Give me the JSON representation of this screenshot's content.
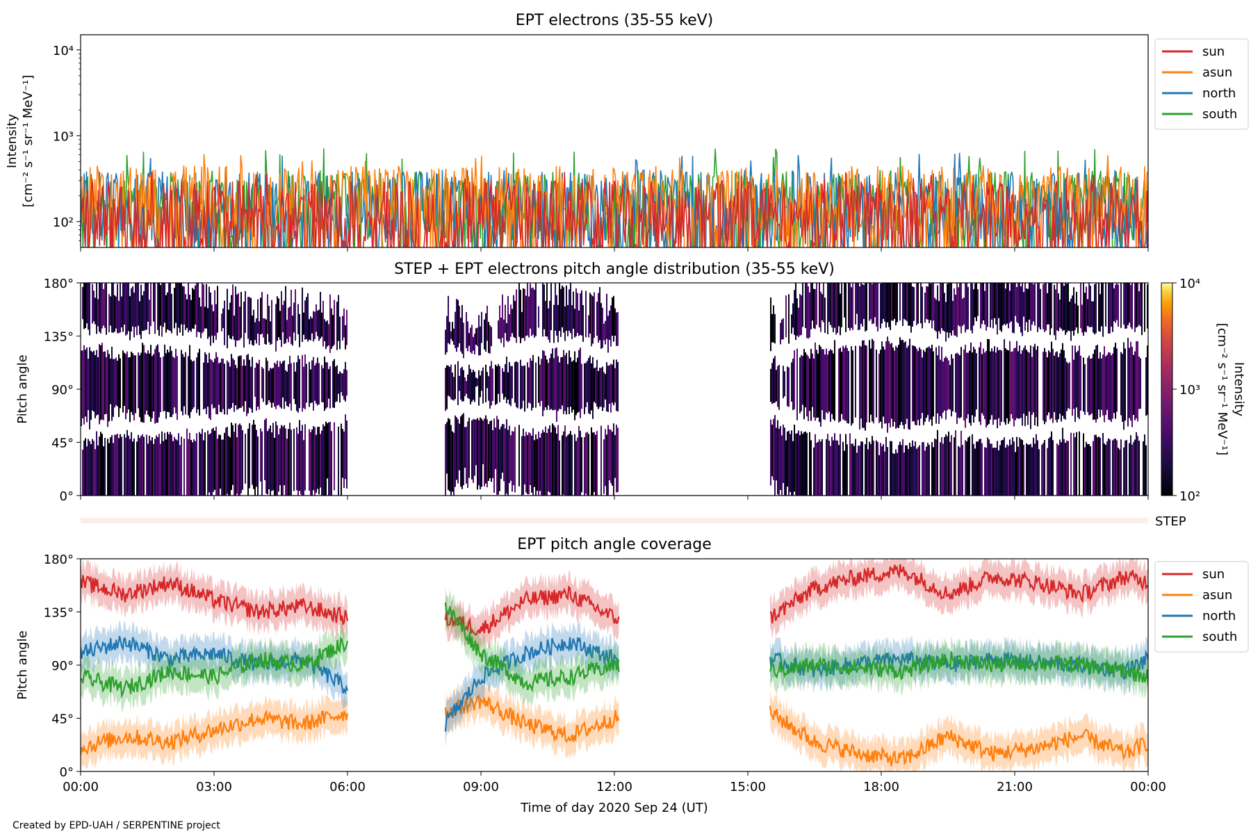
{
  "footer": "Created by EPD-UAH / SERPENTINE project",
  "chart_data": [
    {
      "type": "line",
      "title": "EPT electrons (35-55 keV)",
      "ylabel": "Intensity",
      "ylabel_units": "[cm⁻² s⁻¹ sr⁻¹ MeV⁻¹]",
      "yscale": "log",
      "ylim": [
        50,
        15000
      ],
      "yticks": [
        {
          "value": 100,
          "label": "10²"
        },
        {
          "value": 1000,
          "label": "10³"
        },
        {
          "value": 10000,
          "label": "10⁴"
        }
      ],
      "xlim_hours": [
        0,
        24
      ],
      "legend_position": "outside-right",
      "series": [
        {
          "name": "sun",
          "color": "#d62728",
          "typical_range": [
            50,
            300
          ],
          "peak": 380
        },
        {
          "name": "asun",
          "color": "#ff7f0e",
          "typical_range": [
            80,
            450
          ],
          "peak": 620
        },
        {
          "name": "north",
          "color": "#1f77b4",
          "typical_range": [
            60,
            400
          ],
          "peak": 640
        },
        {
          "name": "south",
          "color": "#2ca02c",
          "typical_range": [
            60,
            400
          ],
          "peak": 720
        }
      ]
    },
    {
      "type": "heatmap",
      "title": "STEP + EPT electrons pitch angle distribution (35-55 keV)",
      "ylabel": "Pitch angle",
      "ylim": [
        0,
        180
      ],
      "yticks": [
        "0°",
        "45°",
        "90°",
        "135°",
        "180°"
      ],
      "xlim_hours": [
        0,
        24
      ],
      "data_intervals_hours": [
        [
          0,
          6
        ],
        [
          8.2,
          12.1
        ],
        [
          15.5,
          24
        ]
      ],
      "colorbar": {
        "label": "Intensity",
        "units": "[cm⁻² s⁻¹ sr⁻¹ MeV⁻¹]",
        "scale": "log",
        "range": [
          100,
          10000
        ],
        "ticks": [
          "10²",
          "10³",
          "10⁴"
        ]
      },
      "step_label": "STEP"
    },
    {
      "type": "line",
      "title": "EPT pitch angle coverage",
      "ylabel": "Pitch angle",
      "ylim": [
        0,
        180
      ],
      "yticks": [
        "0°",
        "45°",
        "90°",
        "135°",
        "180°"
      ],
      "xlabel": "Time of day 2020 Sep 24 (UT)",
      "xticks": [
        "00:00",
        "03:00",
        "06:00",
        "09:00",
        "12:00",
        "15:00",
        "18:00",
        "21:00",
        "00:00"
      ],
      "xlim_hours": [
        0,
        24
      ],
      "data_intervals_hours": [
        [
          0,
          6
        ],
        [
          8.2,
          12.1
        ],
        [
          15.5,
          24
        ]
      ],
      "legend_position": "outside-right",
      "series": [
        {
          "name": "sun",
          "color": "#d62728",
          "x": [
            0,
            1,
            2,
            3,
            4,
            5,
            6,
            8.2,
            9,
            10,
            11,
            12,
            15.5,
            16.5,
            17.5,
            18.5,
            19.5,
            20.5,
            21.5,
            22.5,
            23.5,
            24
          ],
          "y": [
            160,
            150,
            160,
            145,
            135,
            140,
            130,
            130,
            120,
            145,
            150,
            130,
            130,
            155,
            165,
            170,
            150,
            165,
            160,
            150,
            165,
            160
          ]
        },
        {
          "name": "asun",
          "color": "#ff7f0e",
          "x": [
            0,
            1,
            2,
            3,
            4,
            5,
            6,
            8.2,
            9,
            10,
            11,
            12,
            15.5,
            16.5,
            17.5,
            18.5,
            19.5,
            20.5,
            21.5,
            22.5,
            23.5,
            24
          ],
          "y": [
            20,
            30,
            25,
            35,
            45,
            40,
            50,
            50,
            60,
            40,
            30,
            45,
            50,
            25,
            15,
            10,
            30,
            15,
            20,
            30,
            15,
            25
          ]
        },
        {
          "name": "north",
          "color": "#1f77b4",
          "x": [
            0,
            1,
            2,
            3,
            4,
            5,
            6,
            8.2,
            9,
            10,
            11,
            12,
            15.5,
            16.5,
            17.5,
            18.5,
            19.5,
            20.5,
            21.5,
            22.5,
            23.5,
            24
          ],
          "y": [
            100,
            110,
            95,
            100,
            90,
            95,
            70,
            40,
            80,
            100,
            110,
            95,
            95,
            85,
            92,
            95,
            90,
            95,
            92,
            90,
            85,
            95
          ]
        },
        {
          "name": "south",
          "color": "#2ca02c",
          "x": [
            0,
            1,
            2,
            3,
            4,
            5,
            6,
            8.2,
            9,
            10,
            11,
            12,
            15.5,
            16.5,
            17.5,
            18.5,
            19.5,
            20.5,
            21.5,
            22.5,
            23.5,
            24
          ],
          "y": [
            80,
            70,
            85,
            80,
            95,
            90,
            110,
            140,
            100,
            75,
            80,
            90,
            85,
            90,
            88,
            85,
            95,
            90,
            92,
            90,
            85,
            80
          ]
        }
      ]
    }
  ]
}
